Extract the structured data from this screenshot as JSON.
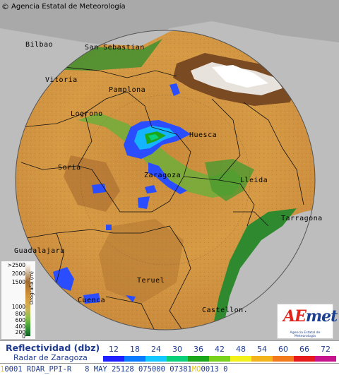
{
  "header": {
    "copyright": "©",
    "agency": "Agencia Estatal de Meteorología"
  },
  "cities": [
    "Bilbao",
    "San Sebastian",
    "Vitoria",
    "Pamplona",
    "Logrono",
    "Huesca",
    "Soria",
    "Zaragoza",
    "Lleida",
    "Tarragona",
    "Guadalajara",
    "Teruel",
    "Cuenca",
    "Castellon."
  ],
  "elevation_legend": {
    "title": "Orografía (m)",
    "ticks": [
      ">2500",
      "2000",
      "1500",
      "1000",
      "800",
      "600",
      "400",
      "200",
      "0"
    ]
  },
  "logo": {
    "word_a": "AE",
    "word_b": "met",
    "sub": "Agencia Estatal de Meteorología"
  },
  "legend": {
    "title": "Reflectividad (dbz)",
    "subtitle": "Radar de Zaragoza",
    "values": [
      "12",
      "18",
      "24",
      "30",
      "36",
      "42",
      "48",
      "54",
      "60",
      "66",
      "72"
    ],
    "colors": [
      "#2020ff",
      "#0a7bff",
      "#14c8ff",
      "#0ad07a",
      "#1aa81a",
      "#7ad21a",
      "#f2f21a",
      "#f2b41a",
      "#f27a1a",
      "#e61a1a",
      "#c8148c"
    ]
  },
  "status": {
    "a": "1",
    "b": "0001 RDAR_PPI-R   8 MAY 25128 075000 07381",
    "c": "MO",
    "d": "0013 0"
  }
}
